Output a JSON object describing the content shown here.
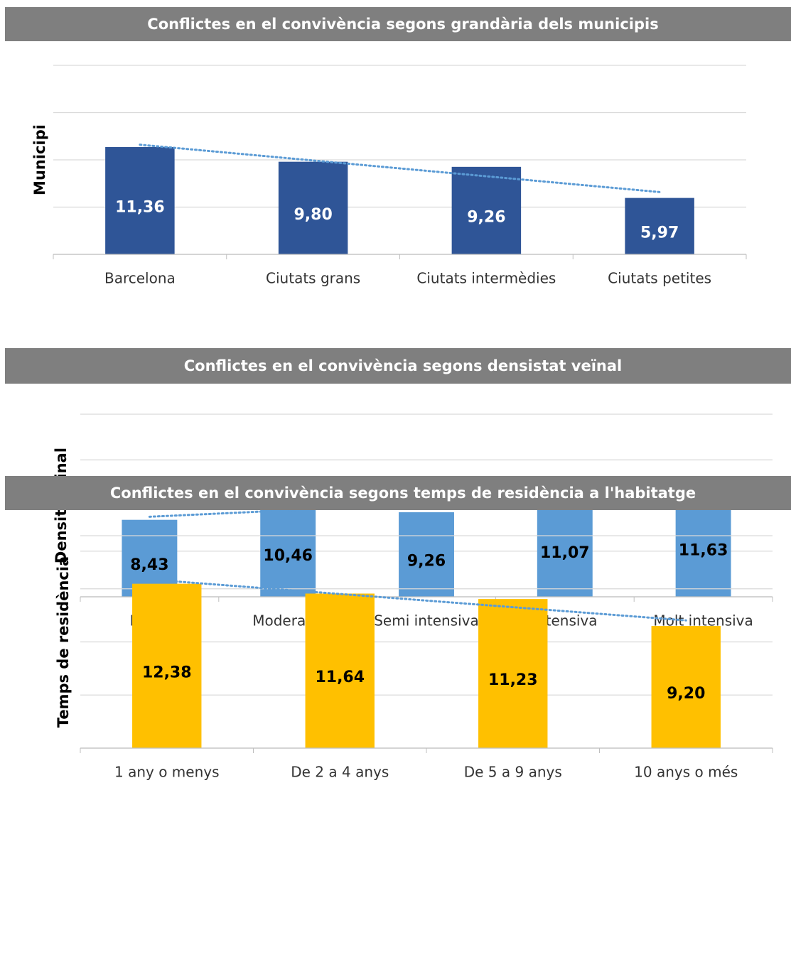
{
  "chart_data": [
    {
      "type": "bar",
      "title": "Conflictes en el convivència segons grandària dels municipis",
      "y_label": "Municipi",
      "categories": [
        "Barcelona",
        "Ciutats grans",
        "Ciutats intermèdies",
        "Ciutats petites"
      ],
      "values": [
        11.36,
        9.8,
        9.26,
        5.97
      ],
      "value_labels": [
        "11,36",
        "9,80",
        "9,26",
        "5,97"
      ],
      "color": "#2f5597",
      "label_color": "#ffffff",
      "ylim": [
        0,
        20
      ],
      "yticks": [
        0,
        5,
        10,
        15,
        20
      ],
      "grid": true,
      "trendline": true
    },
    {
      "type": "bar",
      "title": "Conflictes en el convivència segons densistat veïnal",
      "y_label": "Densit. veinal",
      "categories": [
        "Baixa",
        "Moderada",
        "Semi intensiva",
        "Intensiva",
        "Molt intensiva"
      ],
      "values": [
        8.43,
        10.46,
        9.26,
        11.07,
        11.63
      ],
      "value_labels": [
        "8,43",
        "10,46",
        "9,26",
        "11,07",
        "11,63"
      ],
      "color": "#5b9bd5",
      "label_color": "#000000",
      "ylim": [
        0,
        20
      ],
      "yticks": [
        0,
        5,
        10,
        15,
        20
      ],
      "grid": true,
      "trendline": true
    },
    {
      "type": "bar",
      "title": "Conflictes en el convivència segons temps de residència a l'habitatge",
      "y_label": "Temps de residència",
      "categories": [
        "1 any o menys",
        "De 2 a 4 anys",
        "De 5 a 9 anys",
        "10 anys o més"
      ],
      "values": [
        12.38,
        11.64,
        11.23,
        9.2
      ],
      "value_labels": [
        "12,38",
        "11,64",
        "11,23",
        "9,20"
      ],
      "color": "#ffc000",
      "label_color": "#000000",
      "ylim": [
        0,
        16
      ],
      "yticks": [
        0,
        4,
        8,
        12,
        16
      ],
      "grid": true,
      "trendline": true
    }
  ]
}
